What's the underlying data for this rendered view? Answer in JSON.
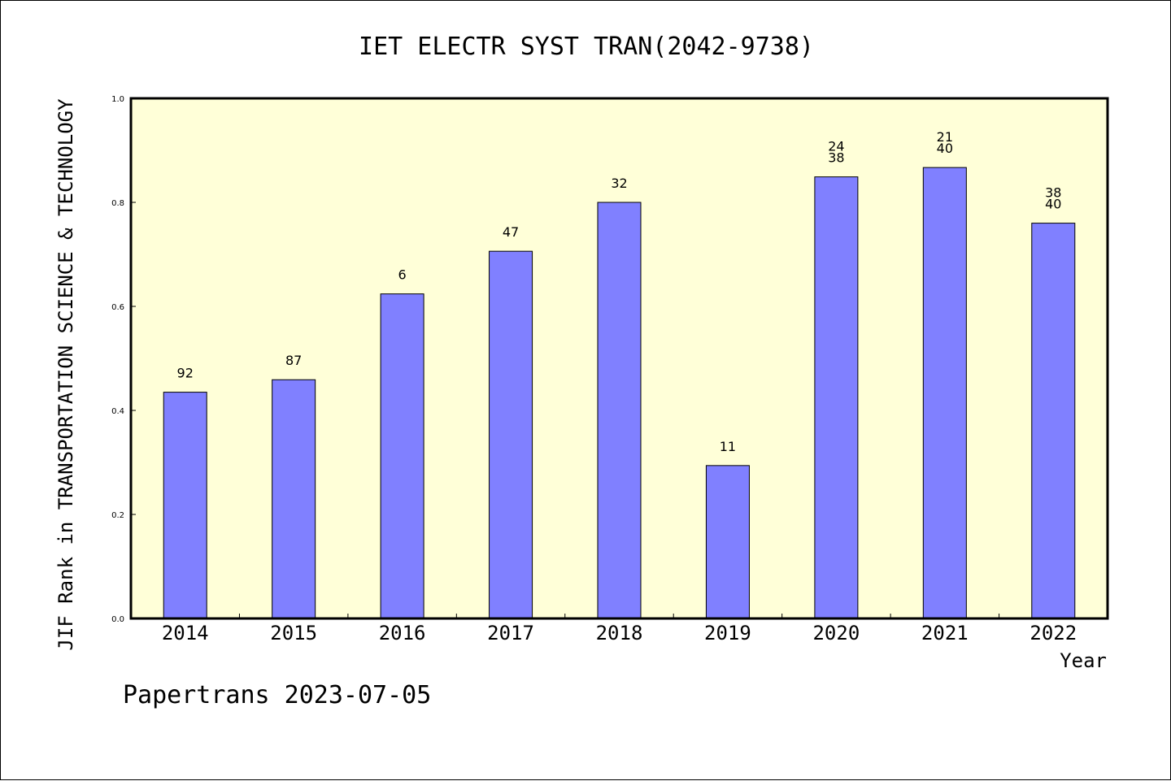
{
  "chart_data": {
    "type": "bar",
    "title": "IET ELECTR SYST TRAN(2042-9738)",
    "xlabel": "Year",
    "ylabel": "JIF Rank in TRANSPORTATION SCIENCE & TECHNOLOGY",
    "ylim": [
      0,
      1.0
    ],
    "yticks": [
      "0.0",
      "0.2",
      "0.4",
      "0.6",
      "0.8",
      "1.0"
    ],
    "grid": false,
    "categories": [
      "2014",
      "2015",
      "2016",
      "2017",
      "2018",
      "2019",
      "2020",
      "2021",
      "2022"
    ],
    "values": [
      0.435,
      0.459,
      0.624,
      0.706,
      0.8,
      0.294,
      0.849,
      0.867,
      0.76
    ],
    "labels": [
      [
        "92"
      ],
      [
        "87"
      ],
      [
        "6"
      ],
      [
        "47"
      ],
      [
        "32"
      ],
      [
        "11"
      ],
      [
        "24",
        "38"
      ],
      [
        "21",
        "40"
      ],
      [
        "38",
        "40"
      ]
    ],
    "colors": {
      "bar": "#8080ff",
      "plot_bg": "#ffffd8",
      "bar_edge": "#000000"
    }
  },
  "footer": {
    "text": "Papertrans 2023-07-05"
  }
}
